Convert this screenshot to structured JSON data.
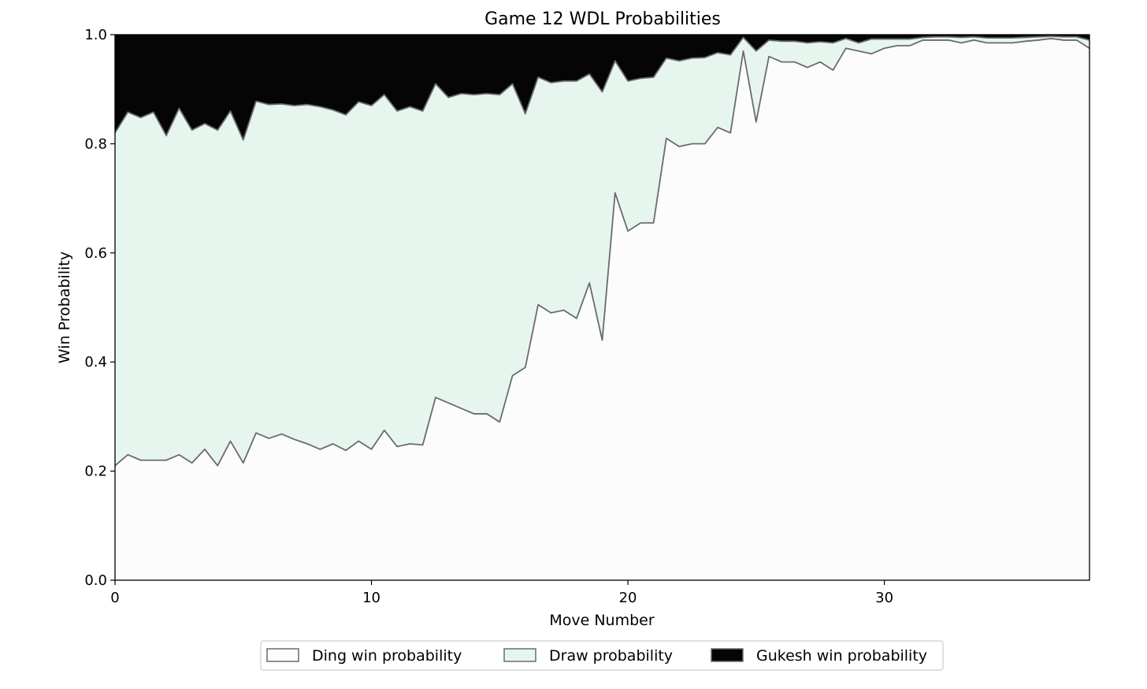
{
  "chart_data": {
    "type": "area",
    "title": "Game 12 WDL Probabilities",
    "xlabel": "Move Number",
    "ylabel": "Win Probability",
    "xlim": [
      0,
      38
    ],
    "ylim": [
      0,
      1
    ],
    "xticks": [
      "0",
      "10",
      "20",
      "30"
    ],
    "yticks": [
      "0.0",
      "0.2",
      "0.4",
      "0.6",
      "0.8",
      "1.0"
    ],
    "stacked": true,
    "grid": false,
    "legend_position": "bottom-center",
    "x": [
      0,
      0.5,
      1,
      1.5,
      2,
      2.5,
      3,
      3.5,
      4,
      4.5,
      5,
      5.5,
      6,
      6.5,
      7,
      7.5,
      8,
      8.5,
      9,
      9.5,
      10,
      10.5,
      11,
      11.5,
      12,
      12.5,
      13,
      13.5,
      14,
      14.5,
      15,
      15.5,
      16,
      16.5,
      17,
      17.5,
      18,
      18.5,
      19,
      19.5,
      20,
      20.5,
      21,
      21.5,
      22,
      22.5,
      23,
      23.5,
      24,
      24.5,
      25,
      25.5,
      26,
      26.5,
      27,
      27.5,
      28,
      28.5,
      29,
      29.5,
      30,
      30.5,
      31,
      31.5,
      32,
      32.5,
      33,
      33.5,
      34,
      34.5,
      35,
      35.5,
      36,
      36.5,
      37,
      37.5,
      38
    ],
    "series": [
      {
        "name": "Ding win probability",
        "color": "#fcfcfc",
        "values": [
          0.21,
          0.23,
          0.22,
          0.22,
          0.22,
          0.23,
          0.215,
          0.24,
          0.21,
          0.255,
          0.215,
          0.27,
          0.26,
          0.268,
          0.258,
          0.25,
          0.24,
          0.25,
          0.238,
          0.255,
          0.24,
          0.275,
          0.245,
          0.25,
          0.248,
          0.335,
          0.325,
          0.315,
          0.305,
          0.305,
          0.29,
          0.375,
          0.39,
          0.505,
          0.49,
          0.495,
          0.48,
          0.545,
          0.44,
          0.71,
          0.64,
          0.655,
          0.655,
          0.81,
          0.795,
          0.8,
          0.8,
          0.83,
          0.82,
          0.97,
          0.84,
          0.96,
          0.95,
          0.95,
          0.94,
          0.95,
          0.935,
          0.975,
          0.97,
          0.965,
          0.975,
          0.98,
          0.98,
          0.99,
          0.99,
          0.99,
          0.985,
          0.99,
          0.985,
          0.985,
          0.985,
          0.988,
          0.99,
          0.993,
          0.99,
          0.99,
          0.975
        ]
      },
      {
        "name": "Draw probability",
        "color": "#e6f6ef",
        "values": [
          0.61,
          0.628,
          0.628,
          0.638,
          0.595,
          0.635,
          0.61,
          0.597,
          0.615,
          0.605,
          0.592,
          0.608,
          0.612,
          0.605,
          0.612,
          0.622,
          0.628,
          0.612,
          0.615,
          0.622,
          0.63,
          0.615,
          0.615,
          0.618,
          0.612,
          0.575,
          0.56,
          0.577,
          0.585,
          0.587,
          0.6,
          0.535,
          0.465,
          0.417,
          0.422,
          0.42,
          0.435,
          0.383,
          0.455,
          0.242,
          0.275,
          0.265,
          0.267,
          0.147,
          0.157,
          0.157,
          0.158,
          0.137,
          0.143,
          0.025,
          0.13,
          0.03,
          0.038,
          0.038,
          0.045,
          0.037,
          0.05,
          0.018,
          0.015,
          0.027,
          0.017,
          0.012,
          0.012,
          0.005,
          0.006,
          0.006,
          0.01,
          0.006,
          0.009,
          0.009,
          0.009,
          0.007,
          0.006,
          0.004,
          0.006,
          0.006,
          0.015
        ]
      },
      {
        "name": "Gukesh win probability",
        "color": "#050505",
        "values": [
          0.18,
          0.142,
          0.152,
          0.142,
          0.185,
          0.135,
          0.175,
          0.163,
          0.175,
          0.14,
          0.193,
          0.122,
          0.128,
          0.127,
          0.13,
          0.128,
          0.132,
          0.138,
          0.147,
          0.123,
          0.13,
          0.11,
          0.14,
          0.132,
          0.14,
          0.09,
          0.115,
          0.108,
          0.11,
          0.108,
          0.11,
          0.09,
          0.145,
          0.078,
          0.088,
          0.085,
          0.085,
          0.072,
          0.105,
          0.048,
          0.085,
          0.08,
          0.078,
          0.043,
          0.048,
          0.043,
          0.042,
          0.033,
          0.037,
          0.005,
          0.03,
          0.01,
          0.012,
          0.012,
          0.015,
          0.013,
          0.015,
          0.007,
          0.015,
          0.008,
          0.008,
          0.008,
          0.008,
          0.005,
          0.004,
          0.004,
          0.005,
          0.004,
          0.006,
          0.006,
          0.006,
          0.005,
          0.004,
          0.003,
          0.004,
          0.004,
          0.01
        ]
      }
    ]
  }
}
